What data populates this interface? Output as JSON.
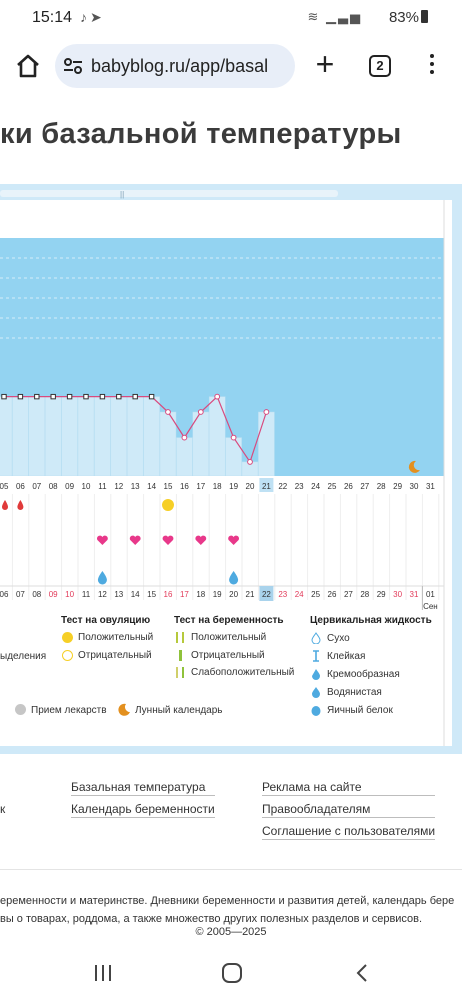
{
  "status_bar": {
    "time": "15:14",
    "battery": "83%"
  },
  "browser": {
    "url": "babyblog.ru/app/basal",
    "tab_count": "2"
  },
  "page": {
    "title": "ки базальной температуры"
  },
  "chart_data": {
    "type": "line",
    "cycle_days": [
      "05",
      "06",
      "07",
      "08",
      "09",
      "10",
      "11",
      "12",
      "13",
      "14",
      "15",
      "16",
      "17",
      "18",
      "19",
      "20",
      "21",
      "22",
      "23",
      "24",
      "25",
      "26",
      "27",
      "28",
      "29",
      "30",
      "31"
    ],
    "date_numbers": [
      "06",
      "07",
      "08",
      "09",
      "10",
      "11",
      "12",
      "13",
      "14",
      "15",
      "16",
      "17",
      "18",
      "19",
      "20",
      "21",
      "22",
      "23",
      "24",
      "25",
      "26",
      "27",
      "28",
      "29",
      "30",
      "31",
      "01"
    ],
    "red_dates": [
      "09",
      "10",
      "16",
      "17",
      "23",
      "24",
      "30",
      "31"
    ],
    "highlight_day": "21",
    "highlight_date": "22",
    "month_label": "Сен",
    "temperature_relative": [
      0.62,
      0.62,
      0.62,
      0.62,
      0.62,
      0.62,
      0.62,
      0.62,
      0.62,
      0.62,
      0.5,
      0.3,
      0.5,
      0.62,
      0.3,
      0.11,
      0.5
    ],
    "bleeding_days": [
      "05",
      "06"
    ],
    "ovulation_test_positive_day": "15",
    "heart_days": [
      "12",
      "14",
      "16",
      "18",
      "20"
    ],
    "fluid_days": [
      "12",
      "20"
    ],
    "moon_day": "30"
  },
  "legend": {
    "ovulation_title": "Тест на овуляцию",
    "ovulation_positive": "Положительный",
    "ovulation_negative": "Отрицательный",
    "pregnancy_title": "Тест на беременность",
    "pregnancy_positive": "Положительный",
    "pregnancy_negative": "Отрицательный",
    "pregnancy_weak": "Слабоположительный",
    "fluid_title": "Цервикальная жидкость",
    "fluid_dry": "Сухо",
    "fluid_sticky": "Клейкая",
    "fluid_creamy": "Кремообразная",
    "fluid_watery": "Водянистая",
    "fluid_eggwhite": "Яичный белок",
    "discharge_partial": "ыделения",
    "medication": "Прием лекарств",
    "lunar": "Лунный календарь"
  },
  "footer": {
    "col1": [
      "Базальная температура",
      "Календарь беременности"
    ],
    "col2": [
      "Реклама на сайте",
      "Правообладателям",
      "Соглашение с пользователями"
    ],
    "left_fragment": "к",
    "text_line1": "еременности и материнстве. Дневники беременности и развития детей, календарь бере",
    "text_line2": "вы о товарах, роддома, а также множество других полезных разделов и сервисов.",
    "copyright": "© 2005—2025"
  },
  "colors": {
    "sky": "#93d3f1",
    "bar_light": "#cfeaf8",
    "line": "#d94a7e",
    "heart": "#e8388a",
    "drop_red": "#e03a3a",
    "drop_blue": "#4eaae0",
    "ovulation_yellow": "#f6cf26",
    "moon": "#e3901f"
  }
}
